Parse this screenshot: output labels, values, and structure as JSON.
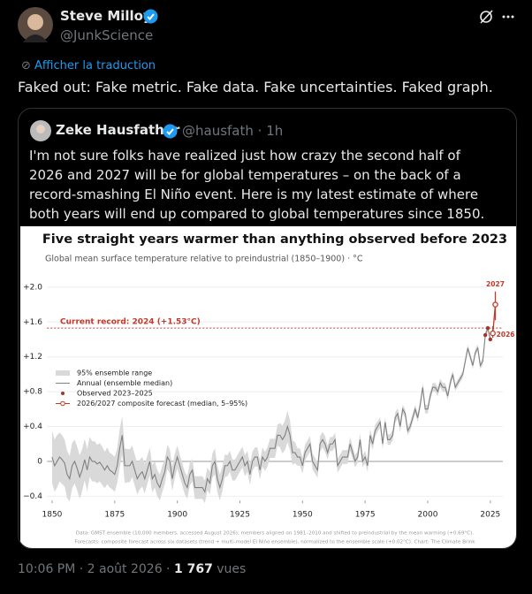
{
  "post": {
    "author": "Steve Milloy",
    "handle": "@JunkScience",
    "translate": "Afficher la traduction",
    "text": "Faked out: Fake metric. Fake data. Fake uncertainties. Faked graph.",
    "footer": {
      "time": "10:06 PM · 2 août 2026 ·",
      "views": "1 767",
      "views_label": "vues"
    }
  },
  "quote": {
    "author": "Zeke Hausfather",
    "handle": "@hausfath",
    "time": "· 1h",
    "text": "I'm not sure folks have realized just how crazy the second half of 2026 and 2027 will be for global temperatures – on the back of a record-smashing El Niño event. Here is my latest estimate of where both years will end up compared to global temperatures since 1850."
  },
  "chart_data": {
    "type": "line",
    "title": "Five straight years warmer than anything observed before 2023",
    "subtitle": "Global mean surface temperature relative to preindustrial (1850–1900)  ·  °C",
    "x": [
      1850,
      1851,
      1852,
      1853,
      1854,
      1855,
      1856,
      1857,
      1858,
      1859,
      1860,
      1861,
      1862,
      1863,
      1864,
      1865,
      1866,
      1867,
      1868,
      1869,
      1870,
      1871,
      1872,
      1873,
      1874,
      1875,
      1876,
      1877,
      1878,
      1879,
      1880,
      1881,
      1882,
      1883,
      1884,
      1885,
      1886,
      1887,
      1888,
      1889,
      1890,
      1891,
      1892,
      1893,
      1894,
      1895,
      1896,
      1897,
      1898,
      1899,
      1900,
      1901,
      1902,
      1903,
      1904,
      1905,
      1906,
      1907,
      1908,
      1909,
      1910,
      1911,
      1912,
      1913,
      1914,
      1915,
      1916,
      1917,
      1918,
      1919,
      1920,
      1921,
      1922,
      1923,
      1924,
      1925,
      1926,
      1927,
      1928,
      1929,
      1930,
      1931,
      1932,
      1933,
      1934,
      1935,
      1936,
      1937,
      1938,
      1939,
      1940,
      1941,
      1942,
      1943,
      1944,
      1945,
      1946,
      1947,
      1948,
      1949,
      1950,
      1951,
      1952,
      1953,
      1954,
      1955,
      1956,
      1957,
      1958,
      1959,
      1960,
      1961,
      1962,
      1963,
      1964,
      1965,
      1966,
      1967,
      1968,
      1969,
      1970,
      1971,
      1972,
      1973,
      1974,
      1975,
      1976,
      1977,
      1978,
      1979,
      1980,
      1981,
      1982,
      1983,
      1984,
      1985,
      1986,
      1987,
      1988,
      1989,
      1990,
      1991,
      1992,
      1993,
      1994,
      1995,
      1996,
      1997,
      1998,
      1999,
      2000,
      2001,
      2002,
      2003,
      2004,
      2005,
      2006,
      2007,
      2008,
      2009,
      2010,
      2011,
      2012,
      2013,
      2014,
      2015,
      2016,
      2017,
      2018,
      2019,
      2020,
      2021,
      2022,
      2023,
      2024,
      2025
    ],
    "band": {
      "name": "95% ensemble range",
      "color": "#d9d9d9",
      "errors": [
        0.3,
        0.3,
        0.3,
        0.28,
        0.28,
        0.27,
        0.27,
        0.26,
        0.26,
        0.25,
        0.25,
        0.25,
        0.24,
        0.24,
        0.24,
        0.23,
        0.23,
        0.23,
        0.22,
        0.22,
        0.22,
        0.21,
        0.21,
        0.2,
        0.2,
        0.2,
        0.2,
        0.22,
        0.22,
        0.2,
        0.19,
        0.19,
        0.18,
        0.18,
        0.18,
        0.17,
        0.17,
        0.17,
        0.16,
        0.16,
        0.16,
        0.15,
        0.15,
        0.15,
        0.15,
        0.14,
        0.14,
        0.14,
        0.14,
        0.14,
        0.13,
        0.13,
        0.13,
        0.13,
        0.13,
        0.13,
        0.13,
        0.13,
        0.13,
        0.13,
        0.13,
        0.13,
        0.13,
        0.13,
        0.14,
        0.15,
        0.15,
        0.15,
        0.14,
        0.13,
        0.12,
        0.12,
        0.12,
        0.12,
        0.12,
        0.12,
        0.12,
        0.12,
        0.12,
        0.12,
        0.11,
        0.11,
        0.11,
        0.11,
        0.11,
        0.11,
        0.11,
        0.11,
        0.11,
        0.11,
        0.12,
        0.14,
        0.16,
        0.17,
        0.18,
        0.17,
        0.14,
        0.12,
        0.1,
        0.1,
        0.09,
        0.09,
        0.09,
        0.09,
        0.09,
        0.09,
        0.09,
        0.09,
        0.09,
        0.09,
        0.08,
        0.08,
        0.08,
        0.08,
        0.08,
        0.08,
        0.08,
        0.08,
        0.08,
        0.08,
        0.07,
        0.07,
        0.07,
        0.07,
        0.07,
        0.07,
        0.07,
        0.07,
        0.07,
        0.07,
        0.06,
        0.06,
        0.06,
        0.06,
        0.06,
        0.06,
        0.06,
        0.06,
        0.06,
        0.06,
        0.05,
        0.05,
        0.05,
        0.05,
        0.05,
        0.05,
        0.05,
        0.05,
        0.05,
        0.05,
        0.05,
        0.05,
        0.05,
        0.05,
        0.05,
        0.05,
        0.05,
        0.05,
        0.05,
        0.05,
        0.04,
        0.04,
        0.04,
        0.04,
        0.04,
        0.04,
        0.04,
        0.04,
        0.04,
        0.04,
        0.04,
        0.04,
        0.04,
        0.04,
        0.04,
        0.04
      ]
    },
    "series": [
      {
        "name": "Annual (ensemble median)",
        "color": "#808080",
        "values": [
          0.05,
          -0.05,
          0.0,
          0.05,
          0.02,
          -0.02,
          -0.15,
          -0.2,
          -0.05,
          0.0,
          -0.08,
          -0.18,
          -0.1,
          0.02,
          -0.1,
          0.05,
          0.0,
          0.0,
          -0.03,
          -0.01,
          -0.05,
          -0.1,
          -0.05,
          -0.1,
          -0.12,
          -0.15,
          -0.05,
          0.15,
          0.3,
          -0.05,
          -0.05,
          -0.05,
          0.0,
          -0.1,
          -0.2,
          -0.15,
          -0.12,
          -0.2,
          -0.1,
          0.0,
          -0.2,
          -0.15,
          -0.25,
          -0.3,
          -0.2,
          -0.12,
          0.05,
          0.0,
          -0.2,
          -0.05,
          0.05,
          -0.05,
          -0.15,
          -0.25,
          -0.3,
          -0.15,
          -0.1,
          -0.3,
          -0.3,
          -0.3,
          -0.3,
          -0.35,
          -0.2,
          -0.25,
          -0.05,
          0.0,
          -0.2,
          -0.3,
          -0.2,
          -0.05,
          -0.05,
          0.0,
          -0.1,
          -0.1,
          -0.05,
          0.0,
          0.05,
          -0.05,
          0.0,
          -0.15,
          0.0,
          0.05,
          0.05,
          -0.1,
          0.05,
          0.0,
          0.05,
          0.15,
          0.15,
          0.15,
          0.3,
          0.3,
          0.25,
          0.3,
          0.4,
          0.3,
          0.1,
          0.1,
          0.05,
          0.05,
          -0.05,
          0.1,
          0.15,
          0.2,
          0.0,
          -0.05,
          -0.1,
          0.2,
          0.25,
          0.2,
          0.1,
          0.2,
          0.2,
          0.25,
          -0.05,
          0.0,
          0.05,
          0.05,
          0.05,
          0.2,
          0.1,
          0.0,
          0.05,
          0.25,
          0.0,
          0.05,
          -0.05,
          0.3,
          0.2,
          0.35,
          0.4,
          0.45,
          0.2,
          0.45,
          0.25,
          0.25,
          0.3,
          0.5,
          0.55,
          0.4,
          0.6,
          0.55,
          0.35,
          0.4,
          0.5,
          0.6,
          0.5,
          0.65,
          0.85,
          0.6,
          0.6,
          0.75,
          0.85,
          0.85,
          0.8,
          0.9,
          0.85,
          0.85,
          0.75,
          0.9,
          1.0,
          0.85,
          0.9,
          0.95,
          1.0,
          1.15,
          1.3,
          1.2,
          1.1,
          1.25,
          1.3,
          1.1,
          1.15,
          1.45,
          1.53,
          1.4
        ]
      },
      {
        "name": "Observed 2023–2025",
        "color": "#a93226",
        "x": [
          2023,
          2024,
          2025
        ],
        "values": [
          1.45,
          1.53,
          1.4
        ]
      },
      {
        "name": "2026/2027 composite forecast (median, 5–95%)",
        "color": "#c0392b",
        "x": [
          2026,
          2027
        ],
        "values": [
          1.47,
          1.8
        ],
        "low": [
          1.42,
          1.62
        ],
        "high": [
          1.55,
          1.95
        ]
      }
    ],
    "record": {
      "value": 1.53,
      "label": "Current record: 2024 (+1.53°C)",
      "color": "#c0392b"
    },
    "xlim": [
      1848,
      2030
    ],
    "ylim": [
      -0.45,
      2.1
    ],
    "xticks": [
      1850,
      1875,
      1900,
      1925,
      1950,
      1975,
      2000,
      2025
    ],
    "yticks": [
      {
        "value": -0.4,
        "label": "−0.4"
      },
      0,
      {
        "value": 0.4,
        "label": "+0.4"
      },
      {
        "value": 0.8,
        "label": "+0.8"
      },
      {
        "value": 1.2,
        "label": "+1.2"
      },
      {
        "value": 1.6,
        "label": "+1.6"
      },
      {
        "value": 2.0,
        "label": "+2.0"
      }
    ],
    "grid": true,
    "footnote": [
      "Data: GMST ensemble (10,000 members, accessed August 2026); members aligned on 1981–2010 and shifted to preindustrial by the mean warming (+0.69°C).",
      "Forecasts: composite forecast across six datasets (trend + multi-model El Niño ensemble), normalized to the ensemble scale (+0.02°C). Chart: The Climate Brink"
    ]
  }
}
